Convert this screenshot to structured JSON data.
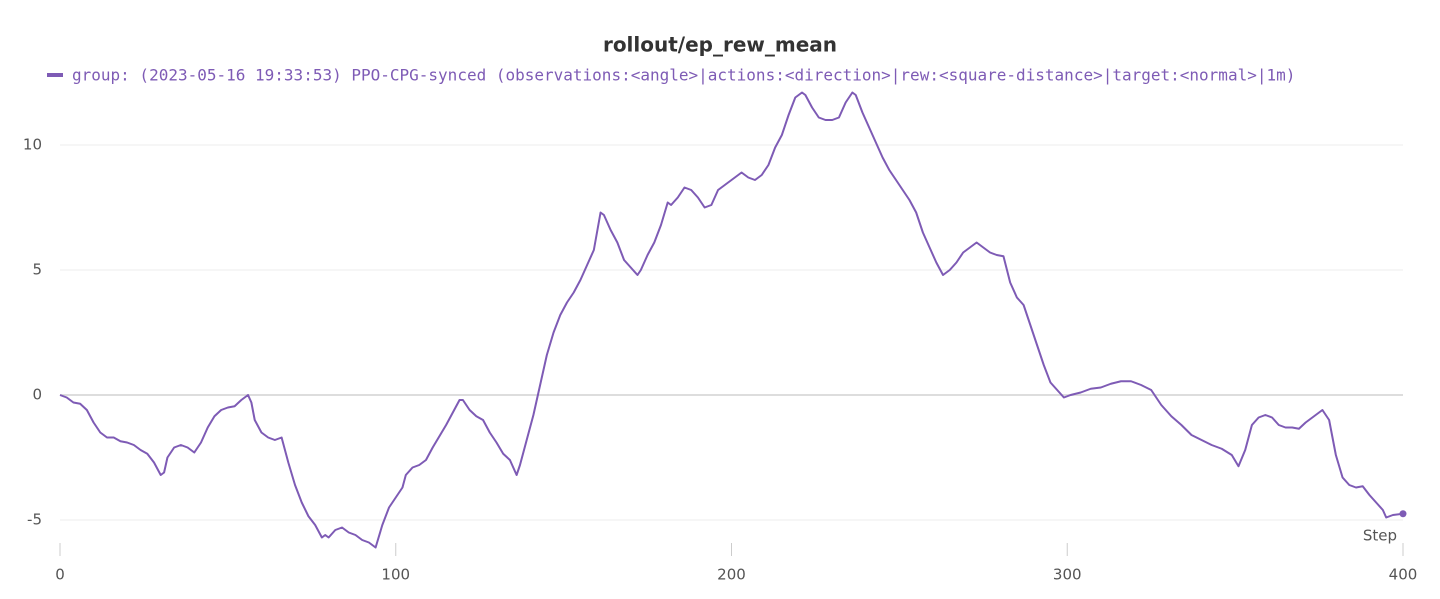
{
  "chart_data": {
    "type": "line",
    "title": "rollout/ep_rew_mean",
    "x_label": "Step",
    "x": [
      0,
      2,
      4,
      6,
      8,
      10,
      12,
      14,
      16,
      18,
      20,
      22,
      24,
      26,
      28,
      30,
      31,
      32,
      34,
      36,
      38,
      40,
      42,
      44,
      46,
      48,
      50,
      52,
      54,
      56,
      57,
      58,
      60,
      62,
      64,
      66,
      68,
      70,
      72,
      74,
      76,
      78,
      79,
      80,
      82,
      84,
      86,
      88,
      90,
      92,
      94,
      96,
      98,
      100,
      102,
      103,
      105,
      107,
      109,
      111,
      113,
      115,
      117,
      119,
      120,
      122,
      124,
      126,
      128,
      130,
      132,
      134,
      136,
      137,
      139,
      141,
      143,
      145,
      147,
      149,
      151,
      153,
      155,
      157,
      159,
      161,
      162,
      164,
      166,
      168,
      170,
      172,
      173,
      175,
      177,
      179,
      181,
      182,
      184,
      186,
      188,
      190,
      192,
      194,
      196,
      198,
      200,
      202,
      203,
      205,
      207,
      209,
      211,
      213,
      215,
      217,
      219,
      221,
      222,
      224,
      226,
      228,
      230,
      232,
      234,
      236,
      237,
      239,
      241,
      243,
      245,
      247,
      249,
      251,
      253,
      255,
      257,
      259,
      261,
      263,
      265,
      267,
      269,
      271,
      273,
      275,
      277,
      279,
      281,
      283,
      285,
      287,
      289,
      291,
      293,
      295,
      297,
      299,
      301,
      304,
      307,
      310,
      313,
      316,
      319,
      322,
      325,
      328,
      331,
      334,
      337,
      340,
      343,
      346,
      349,
      351,
      353,
      355,
      357,
      359,
      361,
      363,
      365,
      367,
      369,
      371,
      373,
      375,
      376,
      378,
      380,
      382,
      384,
      386,
      388,
      390,
      392,
      394,
      395,
      397,
      400
    ],
    "series": [
      {
        "name": "group: (2023-05-16 19:33:53) PPO-CPG-synced (observations:<angle>|actions:<direction>|rew:<square-distance>|target:<normal>|1m)",
        "color": "#7e5bb5",
        "values": [
          0,
          -0.1,
          -0.3,
          -0.35,
          -0.6,
          -1.1,
          -1.5,
          -1.7,
          -1.7,
          -1.85,
          -1.9,
          -2.0,
          -2.2,
          -2.35,
          -2.7,
          -3.2,
          -3.1,
          -2.5,
          -2.1,
          -2.0,
          -2.1,
          -2.3,
          -1.9,
          -1.3,
          -0.85,
          -0.6,
          -0.5,
          -0.45,
          -0.2,
          0,
          -0.3,
          -1.0,
          -1.5,
          -1.7,
          -1.8,
          -1.7,
          -2.7,
          -3.6,
          -4.3,
          -4.85,
          -5.2,
          -5.7,
          -5.6,
          -5.7,
          -5.4,
          -5.3,
          -5.5,
          -5.6,
          -5.8,
          -5.9,
          -6.1,
          -5.2,
          -4.5,
          -4.1,
          -3.7,
          -3.2,
          -2.9,
          -2.8,
          -2.6,
          -2.1,
          -1.65,
          -1.2,
          -0.7,
          -0.2,
          -0.2,
          -0.6,
          -0.85,
          -1.0,
          -1.5,
          -1.9,
          -2.35,
          -2.6,
          -3.2,
          -2.8,
          -1.8,
          -0.8,
          0.4,
          1.6,
          2.5,
          3.2,
          3.7,
          4.1,
          4.6,
          5.2,
          5.8,
          7.3,
          7.2,
          6.6,
          6.1,
          5.4,
          5.1,
          4.8,
          5.0,
          5.6,
          6.1,
          6.8,
          7.7,
          7.6,
          7.9,
          8.3,
          8.2,
          7.9,
          7.5,
          7.6,
          8.2,
          8.4,
          8.6,
          8.8,
          8.9,
          8.7,
          8.6,
          8.8,
          9.2,
          9.9,
          10.4,
          11.2,
          11.9,
          12.1,
          12.0,
          11.5,
          11.1,
          11.0,
          11.0,
          11.1,
          11.7,
          12.1,
          12.0,
          11.3,
          10.7,
          10.1,
          9.5,
          9.0,
          8.6,
          8.2,
          7.8,
          7.3,
          6.5,
          5.9,
          5.3,
          4.8,
          5.0,
          5.3,
          5.7,
          5.9,
          6.1,
          5.9,
          5.7,
          5.6,
          5.55,
          4.5,
          3.9,
          3.6,
          2.8,
          2.0,
          1.2,
          0.5,
          0.2,
          -0.1,
          0,
          0.1,
          0.25,
          0.3,
          0.45,
          0.55,
          0.55,
          0.4,
          0.2,
          -0.4,
          -0.85,
          -1.2,
          -1.6,
          -1.8,
          -2.0,
          -2.15,
          -2.4,
          -2.85,
          -2.2,
          -1.2,
          -0.9,
          -0.8,
          -0.9,
          -1.2,
          -1.3,
          -1.3,
          -1.35,
          -1.1,
          -0.9,
          -0.7,
          -0.6,
          -1.0,
          -2.4,
          -3.3,
          -3.6,
          -3.7,
          -3.65,
          -4.0,
          -4.3,
          -4.6,
          -4.9,
          -4.8,
          -4.75
        ]
      }
    ],
    "xlim": [
      0,
      400
    ],
    "xticks": [
      0,
      100,
      200,
      300,
      400
    ],
    "ylim": [
      -6.2,
      12.2
    ],
    "yticks": [
      -5,
      0,
      5,
      10
    ],
    "grid": true
  }
}
